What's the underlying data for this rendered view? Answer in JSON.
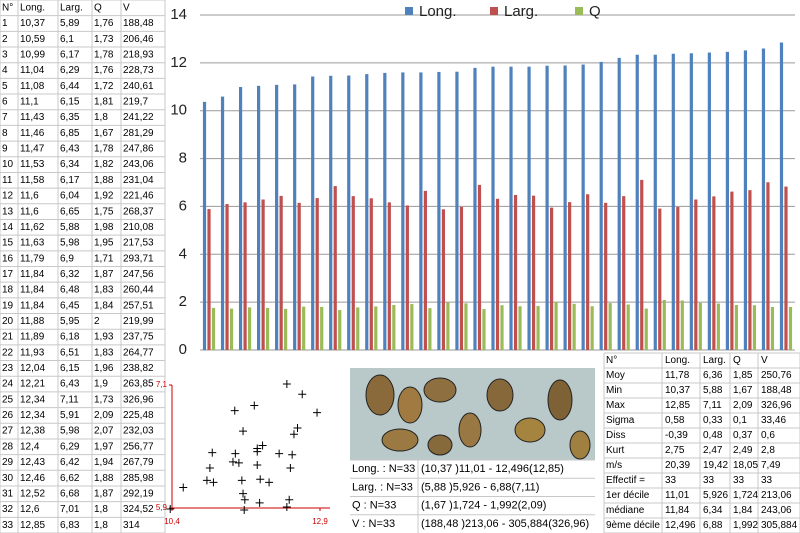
{
  "table": {
    "header": [
      "N°",
      "Long.",
      "Larg.",
      "Q",
      "V"
    ],
    "rows": [
      [
        "1",
        "10,37",
        "5,89",
        "1,76",
        "188,48"
      ],
      [
        "2",
        "10,59",
        "6,1",
        "1,73",
        "206,46"
      ],
      [
        "3",
        "10,99",
        "6,17",
        "1,78",
        "218,93"
      ],
      [
        "4",
        "11,04",
        "6,29",
        "1,76",
        "228,73"
      ],
      [
        "5",
        "11,08",
        "6,44",
        "1,72",
        "240,61"
      ],
      [
        "6",
        "11,1",
        "6,15",
        "1,81",
        "219,7"
      ],
      [
        "7",
        "11,43",
        "6,35",
        "1,8",
        "241,22"
      ],
      [
        "8",
        "11,46",
        "6,85",
        "1,67",
        "281,29"
      ],
      [
        "9",
        "11,47",
        "6,43",
        "1,78",
        "247,86"
      ],
      [
        "10",
        "11,53",
        "6,34",
        "1,82",
        "243,06"
      ],
      [
        "11",
        "11,58",
        "6,17",
        "1,88",
        "231,04"
      ],
      [
        "12",
        "11,6",
        "6,04",
        "1,92",
        "221,46"
      ],
      [
        "13",
        "11,6",
        "6,65",
        "1,75",
        "268,37"
      ],
      [
        "14",
        "11,62",
        "5,88",
        "1,98",
        "210,08"
      ],
      [
        "15",
        "11,63",
        "5,98",
        "1,95",
        "217,53"
      ],
      [
        "16",
        "11,79",
        "6,9",
        "1,71",
        "293,71"
      ],
      [
        "17",
        "11,84",
        "6,32",
        "1,87",
        "247,56"
      ],
      [
        "18",
        "11,84",
        "6,48",
        "1,83",
        "260,44"
      ],
      [
        "19",
        "11,84",
        "6,45",
        "1,84",
        "257,51"
      ],
      [
        "20",
        "11,88",
        "5,95",
        "2",
        "219,99"
      ],
      [
        "21",
        "11,89",
        "6,18",
        "1,93",
        "237,75"
      ],
      [
        "22",
        "11,93",
        "6,51",
        "1,83",
        "264,77"
      ],
      [
        "23",
        "12,04",
        "6,15",
        "1,96",
        "238,82"
      ],
      [
        "24",
        "12,21",
        "6,43",
        "1,9",
        "263,85"
      ],
      [
        "25",
        "12,34",
        "7,11",
        "1,73",
        "326,96"
      ],
      [
        "26",
        "12,34",
        "5,91",
        "2,09",
        "225,48"
      ],
      [
        "27",
        "12,38",
        "5,98",
        "2,07",
        "232,03"
      ],
      [
        "28",
        "12,4",
        "6,29",
        "1,97",
        "256,77"
      ],
      [
        "29",
        "12,43",
        "6,42",
        "1,94",
        "267,79"
      ],
      [
        "30",
        "12,46",
        "6,62",
        "1,88",
        "285,98"
      ],
      [
        "31",
        "12,52",
        "6,68",
        "1,87",
        "292,19"
      ],
      [
        "32",
        "12,6",
        "7,01",
        "1,8",
        "324,52"
      ],
      [
        "33",
        "12,85",
        "6,83",
        "1,8",
        "314"
      ]
    ]
  },
  "chart_data": [
    {
      "type": "bar",
      "categories": [
        null,
        null,
        null,
        null,
        null,
        null,
        null,
        null,
        null,
        null,
        null,
        null,
        null,
        null,
        null,
        null,
        null,
        null,
        null,
        null,
        null,
        null,
        null,
        null,
        null,
        null,
        null,
        null,
        null,
        null,
        null,
        null,
        null
      ],
      "series": [
        {
          "name": "Long.",
          "color": "#4f81bd",
          "values": [
            10.37,
            10.59,
            10.99,
            11.04,
            11.08,
            11.1,
            11.43,
            11.46,
            11.47,
            11.53,
            11.58,
            11.6,
            11.6,
            11.62,
            11.63,
            11.79,
            11.84,
            11.84,
            11.84,
            11.88,
            11.89,
            11.93,
            12.04,
            12.21,
            12.34,
            12.34,
            12.38,
            12.4,
            12.43,
            12.46,
            12.52,
            12.6,
            12.85
          ]
        },
        {
          "name": "Larg.",
          "color": "#c0504d",
          "values": [
            5.89,
            6.1,
            6.17,
            6.29,
            6.44,
            6.15,
            6.35,
            6.85,
            6.43,
            6.34,
            6.17,
            6.04,
            6.65,
            5.88,
            5.98,
            6.9,
            6.32,
            6.48,
            6.45,
            5.95,
            6.18,
            6.51,
            6.15,
            6.43,
            7.11,
            5.91,
            5.98,
            6.29,
            6.42,
            6.62,
            6.68,
            7.01,
            6.83
          ]
        },
        {
          "name": "Q",
          "color": "#9bbb59",
          "values": [
            1.76,
            1.73,
            1.78,
            1.76,
            1.72,
            1.81,
            1.8,
            1.67,
            1.78,
            1.82,
            1.88,
            1.92,
            1.75,
            1.98,
            1.95,
            1.71,
            1.87,
            1.83,
            1.84,
            2,
            1.93,
            1.83,
            1.96,
            1.9,
            1.73,
            2.09,
            2.07,
            1.97,
            1.94,
            1.88,
            1.87,
            1.8,
            1.8
          ]
        }
      ],
      "ylim": [
        0,
        14
      ],
      "yticks": [
        0,
        2,
        4,
        6,
        8,
        10,
        12,
        14
      ],
      "grid": true,
      "legend": "top"
    },
    {
      "type": "scatter",
      "color": "#000000",
      "x": [
        10.37,
        10.59,
        10.99,
        11.04,
        11.08,
        11.1,
        11.43,
        11.46,
        11.47,
        11.53,
        11.58,
        11.6,
        11.6,
        11.62,
        11.63,
        11.79,
        11.84,
        11.84,
        11.84,
        11.88,
        11.89,
        11.93,
        12.04,
        12.21,
        12.34,
        12.34,
        12.38,
        12.4,
        12.43,
        12.46,
        12.52,
        12.6,
        12.85
      ],
      "values": [
        5.89,
        6.1,
        6.17,
        6.29,
        6.44,
        6.15,
        6.35,
        6.85,
        6.43,
        6.34,
        6.17,
        6.04,
        6.65,
        5.88,
        5.98,
        6.9,
        6.32,
        6.48,
        6.45,
        5.95,
        6.18,
        6.51,
        6.15,
        6.43,
        7.11,
        5.91,
        5.98,
        6.29,
        6.42,
        6.62,
        6.68,
        7.01,
        6.83
      ],
      "xlim": [
        10.4,
        12.9
      ],
      "xticks": [
        {
          "value": 10.4,
          "label": "10,4"
        },
        {
          "value": 12.9,
          "label": "12,9"
        }
      ],
      "ylim": [
        5.9,
        7.1
      ],
      "yticks": [
        {
          "value": 5.9,
          "label": "5,9"
        },
        {
          "value": 7.1,
          "label": "7,1"
        }
      ],
      "axis_color": "#cc0000"
    }
  ],
  "summary": [
    [
      "Long. : N=33",
      "(10,37 )11,01 - 12,496(12,85)"
    ],
    [
      "Larg. : N=33",
      "(5,88 )5,926 - 6,88(7,11)"
    ],
    [
      "Q : N=33",
      "(1,67 )1,724 - 1,992(2,09)"
    ],
    [
      "V : N=33",
      "(188,48 )213,06 - 305,884(326,96)"
    ]
  ],
  "stats": {
    "header": [
      "N°",
      "Long.",
      "Larg.",
      "Q",
      "V"
    ],
    "rows": [
      [
        "Moy",
        "11,78",
        "6,36",
        "1,85",
        "250,76"
      ],
      [
        "Min",
        "10,37",
        "5,88",
        "1,67",
        "188,48"
      ],
      [
        "Max",
        "12,85",
        "7,11",
        "2,09",
        "326,96"
      ],
      [
        "Sigma",
        "0,58",
        "0,33",
        "0,1",
        "33,46"
      ],
      [
        "Diss",
        "-0,39",
        "0,48",
        "0,37",
        "0,6"
      ],
      [
        "Kurt",
        "2,75",
        "2,47",
        "2,49",
        "2,8"
      ],
      [
        "m/s",
        "20,39",
        "19,42",
        "18,05",
        "7,49"
      ],
      [
        "Effectif =",
        "33",
        "33",
        "33",
        "33"
      ],
      [
        "1er décile",
        "11,01",
        "5,926",
        "1,724",
        "213,06"
      ],
      [
        "médiane",
        "11,84",
        "6,34",
        "1,84",
        "243,06"
      ],
      [
        "9ème décile",
        "12,496",
        "6,88",
        "1,992",
        "305,884"
      ]
    ]
  }
}
